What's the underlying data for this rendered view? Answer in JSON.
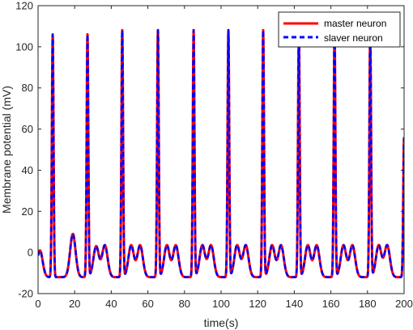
{
  "chart_data": {
    "type": "line",
    "title": "",
    "xlabel": "time(s)",
    "ylabel": "Membrane potential (mV)",
    "xlim": [
      0,
      200
    ],
    "ylim": [
      -20,
      120
    ],
    "xticks": [
      0,
      20,
      40,
      60,
      80,
      100,
      120,
      140,
      160,
      180,
      200
    ],
    "yticks": [
      -20,
      0,
      20,
      40,
      60,
      80,
      100,
      120
    ],
    "grid": false,
    "legend_position": "top-right",
    "model": {
      "baseline": -12,
      "spike_times": [
        8,
        27,
        46,
        65.5,
        85,
        104,
        123,
        142.5,
        162,
        181.5,
        200
      ],
      "spike_peaks": [
        106,
        106,
        108,
        108,
        108,
        108,
        108,
        108,
        108,
        108,
        56
      ],
      "subthreshold_peaks": [
        1,
        9,
        3,
        3.5,
        3.5,
        3.5,
        3.5,
        3.5,
        3.5,
        3.5,
        3.5,
        3.5,
        3.5,
        3.5,
        3.5,
        3.5,
        3.5,
        3.5,
        3.5,
        3.5,
        3.5,
        3.5
      ]
    },
    "series": [
      {
        "name": "master neuron",
        "color": "#ff0000",
        "style": "solid"
      },
      {
        "name": "slaver neuron",
        "color": "#0000ff",
        "style": "dashed"
      }
    ]
  }
}
